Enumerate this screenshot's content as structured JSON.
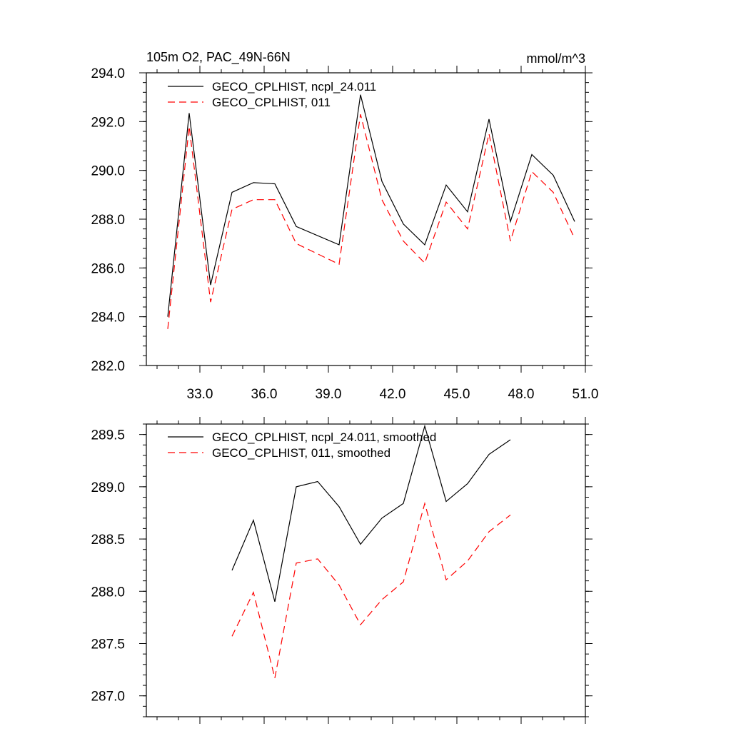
{
  "chart_data": [
    {
      "type": "line",
      "title": "105m O2, PAC_49N-66N",
      "units": "mmol/m^3",
      "xlim": [
        30.5,
        51.0
      ],
      "ylim": [
        282.0,
        294.0
      ],
      "xticks": [
        33.0,
        36.0,
        39.0,
        42.0,
        45.0,
        48.0,
        51.0
      ],
      "xtick_labels": [
        "33.0",
        "36.0",
        "39.0",
        "42.0",
        "45.0",
        "48.0",
        "51.0"
      ],
      "yticks": [
        282.0,
        284.0,
        286.0,
        288.0,
        290.0,
        292.0,
        294.0
      ],
      "ytick_labels": [
        "282.0",
        "284.0",
        "286.0",
        "288.0",
        "290.0",
        "292.0",
        "294.0"
      ],
      "legend_position": "top-left",
      "x": [
        31.5,
        32.5,
        33.5,
        34.5,
        35.5,
        36.5,
        37.5,
        39.5,
        40.5,
        41.5,
        42.5,
        43.5,
        44.5,
        45.5,
        46.5,
        47.5,
        48.5,
        49.5,
        50.5
      ],
      "series": [
        {
          "name": "GECO_CPLHIST, ncpl_24.011",
          "color": "#000000",
          "dash": "solid",
          "values": [
            284.0,
            292.35,
            285.3,
            289.1,
            289.5,
            289.45,
            287.7,
            286.95,
            293.1,
            289.55,
            287.8,
            286.95,
            289.4,
            288.3,
            292.1,
            287.9,
            290.65,
            289.8,
            287.9
          ]
        },
        {
          "name": "GECO_CPLHIST, 011",
          "color": "#ff0000",
          "dash": "dashed",
          "values": [
            283.5,
            291.8,
            284.6,
            288.4,
            288.8,
            288.8,
            287.0,
            286.15,
            292.3,
            288.8,
            287.1,
            286.2,
            288.7,
            287.6,
            291.5,
            287.1,
            289.95,
            289.1,
            287.2
          ]
        }
      ]
    },
    {
      "type": "line",
      "xlim": [
        30.5,
        51.0
      ],
      "ylim": [
        286.8,
        289.6
      ],
      "xticks": [
        33.0,
        36.0,
        39.0,
        42.0,
        45.0,
        48.0,
        51.0
      ],
      "yticks": [
        287.0,
        287.5,
        288.0,
        288.5,
        289.0,
        289.5
      ],
      "ytick_labels": [
        "287.0",
        "287.5",
        "288.0",
        "288.5",
        "289.0",
        "289.5"
      ],
      "legend_position": "top-left",
      "x": [
        34.5,
        35.5,
        36.5,
        37.5,
        38.5,
        39.5,
        40.5,
        41.5,
        42.5,
        43.5,
        44.5,
        45.5,
        46.5,
        47.5
      ],
      "series": [
        {
          "name": "GECO_CPLHIST, ncpl_24.011, smoothed",
          "color": "#000000",
          "dash": "solid",
          "values": [
            288.2,
            288.68,
            287.9,
            289.0,
            289.05,
            288.81,
            288.45,
            288.7,
            288.84,
            289.58,
            288.86,
            289.03,
            289.31,
            289.45
          ]
        },
        {
          "name": "GECO_CPLHIST, 011, smoothed",
          "color": "#ff0000",
          "dash": "dashed",
          "values": [
            287.57,
            287.99,
            287.17,
            288.27,
            288.31,
            288.06,
            287.68,
            287.92,
            288.09,
            288.84,
            288.11,
            288.29,
            288.57,
            288.73
          ]
        }
      ]
    }
  ]
}
